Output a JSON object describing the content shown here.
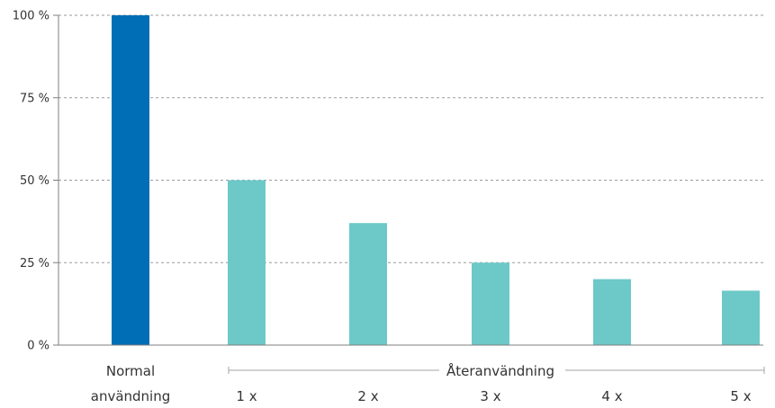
{
  "chart_data": {
    "type": "bar",
    "categories": [
      "Normal användning",
      "1 x",
      "2 x",
      "3 x",
      "4 x",
      "5 x"
    ],
    "category_lines": [
      [
        "Normal",
        "användning"
      ],
      [
        "1 x"
      ],
      [
        "2 x"
      ],
      [
        "3 x"
      ],
      [
        "4 x"
      ],
      [
        "5 x"
      ]
    ],
    "values": [
      100,
      50,
      37,
      25,
      20,
      16.5
    ],
    "bar_colors": [
      "#006eb6",
      "#6cc9c8",
      "#6cc9c8",
      "#6cc9c8",
      "#6cc9c8",
      "#6cc9c8"
    ],
    "y_ticks": [
      {
        "value": 0,
        "label": "0 %"
      },
      {
        "value": 25,
        "label": "25 %"
      },
      {
        "value": 50,
        "label": "50 %"
      },
      {
        "value": 75,
        "label": "75 %"
      },
      {
        "value": 100,
        "label": "100 %"
      }
    ],
    "ylim": [
      0,
      100
    ],
    "grid": true,
    "group_label": "Återanvändning",
    "group_categories": [
      "1 x",
      "2 x",
      "3 x",
      "4 x",
      "5 x"
    ],
    "colors": {
      "axis": "#7f7f7f",
      "grid": "#9a9a9a",
      "text": "#333333"
    }
  }
}
